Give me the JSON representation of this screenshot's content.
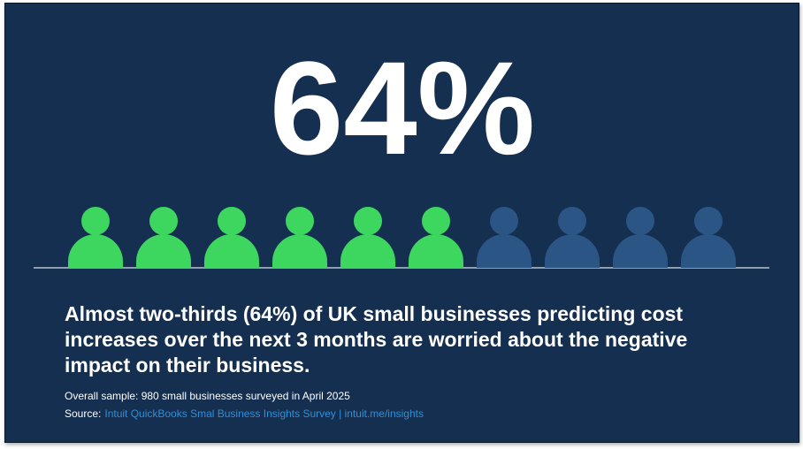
{
  "headline": "64%",
  "pictogram": {
    "total": 10,
    "filled": 6,
    "filled_color": "#3dd65f",
    "empty_color": "#2b5585"
  },
  "statement": [
    "Almost two-thirds (64%) of UK small businesses predicting cost",
    "increases over the next 3 months are worried about the negative",
    "impact on their business."
  ],
  "sample_note": "Overall sample: 980 small businesses surveyed in April 2025",
  "source": {
    "label": "Source:",
    "link": "Intuit QuickBooks Smal Business Insights Survey | intuit.me/insights"
  }
}
